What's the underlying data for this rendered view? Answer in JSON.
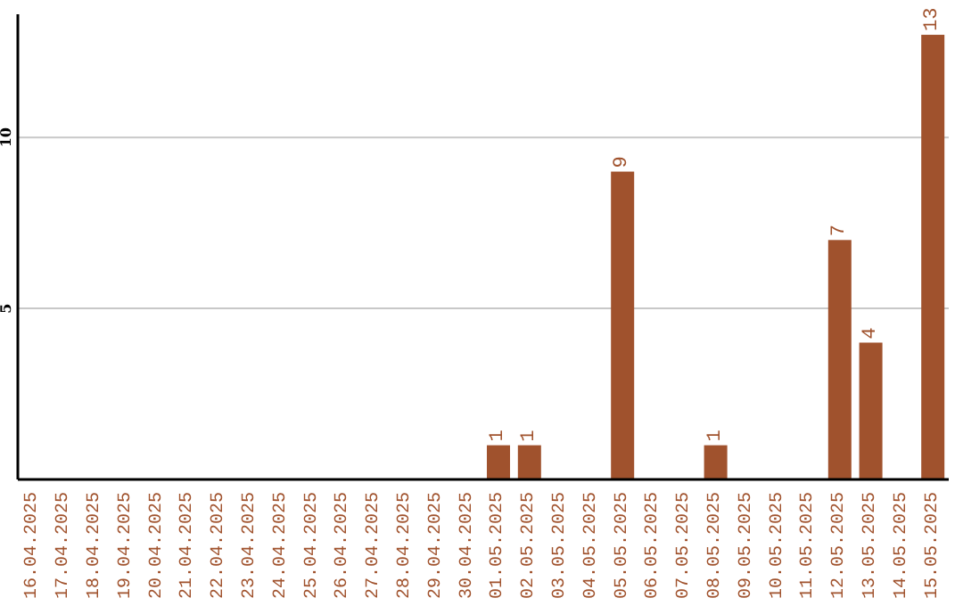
{
  "chart_data": {
    "type": "bar",
    "categories": [
      "16.04.2025",
      "17.04.2025",
      "18.04.2025",
      "19.04.2025",
      "20.04.2025",
      "21.04.2025",
      "22.04.2025",
      "23.04.2025",
      "24.04.2025",
      "25.04.2025",
      "26.04.2025",
      "27.04.2025",
      "28.04.2025",
      "29.04.2025",
      "30.04.2025",
      "01.05.2025",
      "02.05.2025",
      "03.05.2025",
      "04.05.2025",
      "05.05.2025",
      "06.05.2025",
      "07.05.2025",
      "08.05.2025",
      "09.05.2025",
      "10.05.2025",
      "11.05.2025",
      "12.05.2025",
      "13.05.2025",
      "14.05.2025",
      "15.05.2025"
    ],
    "values": [
      0,
      0,
      0,
      0,
      0,
      0,
      0,
      0,
      0,
      0,
      0,
      0,
      0,
      0,
      0,
      1,
      1,
      0,
      0,
      9,
      0,
      0,
      1,
      0,
      0,
      0,
      7,
      4,
      0,
      13
    ],
    "value_labels": [
      null,
      null,
      null,
      null,
      null,
      null,
      null,
      null,
      null,
      null,
      null,
      null,
      null,
      null,
      null,
      "1",
      "1",
      null,
      null,
      "9",
      null,
      null,
      "1",
      null,
      null,
      null,
      "7",
      "4",
      null,
      "13"
    ],
    "color": "#a0522d",
    "ylim": [
      0,
      13.6
    ],
    "yticks": [
      5,
      10
    ],
    "grid": "y",
    "legend": false
  }
}
